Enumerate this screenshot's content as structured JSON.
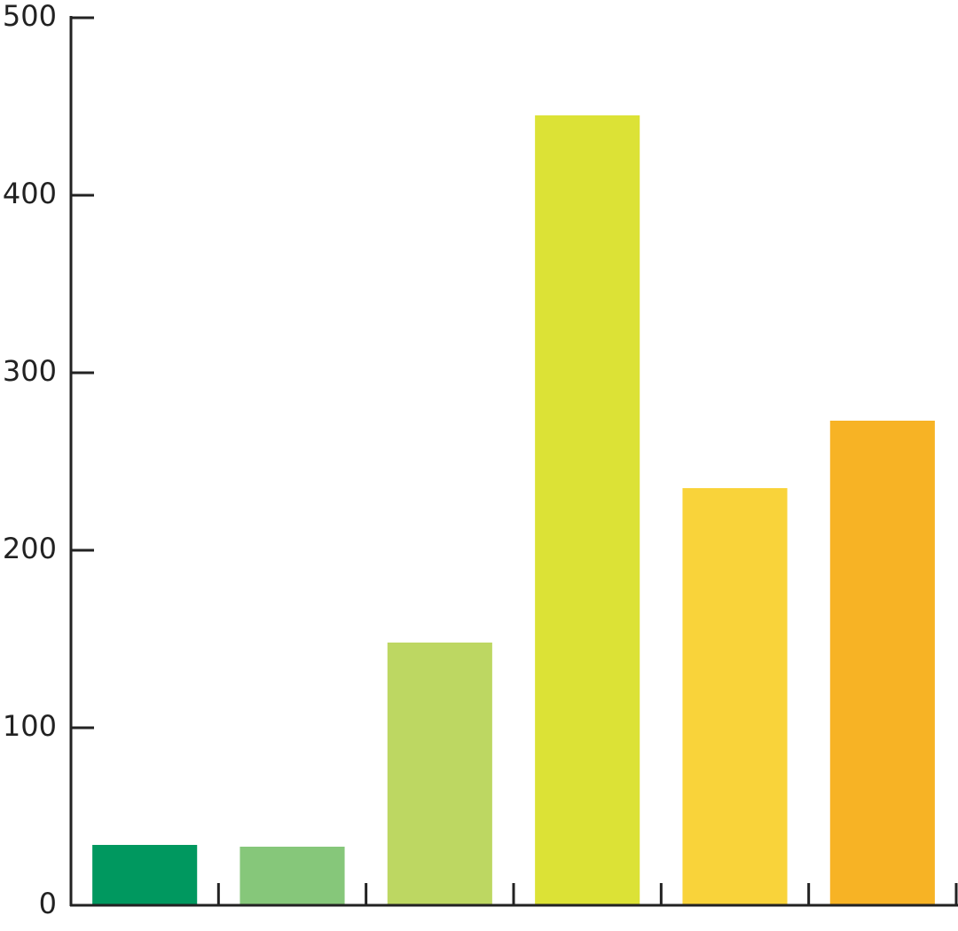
{
  "chart_data": {
    "type": "bar",
    "categories": [
      null,
      null,
      null,
      null,
      null,
      null
    ],
    "values": [
      34,
      33,
      148,
      445,
      235,
      273
    ],
    "colors": [
      "#00985f",
      "#86c77a",
      "#bdd762",
      "#dce236",
      "#f9d33a",
      "#f7b325"
    ],
    "ylim": [
      0,
      500
    ],
    "yticks": [
      0,
      100,
      200,
      300,
      400,
      500
    ],
    "grid": false
  }
}
